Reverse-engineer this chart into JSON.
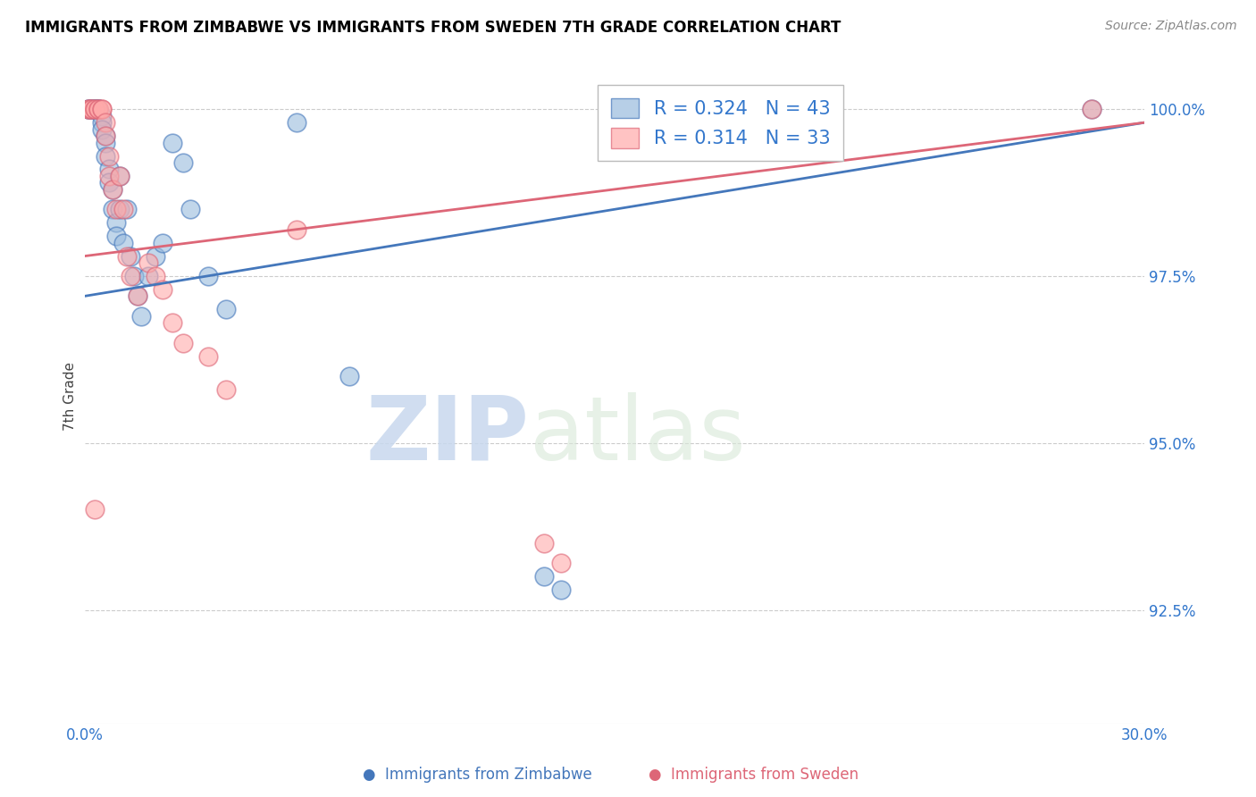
{
  "title": "IMMIGRANTS FROM ZIMBABWE VS IMMIGRANTS FROM SWEDEN 7TH GRADE CORRELATION CHART",
  "source": "Source: ZipAtlas.com",
  "ylabel": "7th Grade",
  "ytick_labels": [
    "100.0%",
    "97.5%",
    "95.0%",
    "92.5%"
  ],
  "ytick_values": [
    1.0,
    0.975,
    0.95,
    0.925
  ],
  "xlim": [
    0.0,
    0.3
  ],
  "ylim": [
    0.908,
    1.006
  ],
  "legend1_label": "Immigrants from Zimbabwe",
  "legend2_label": "Immigrants from Sweden",
  "R_blue": 0.324,
  "N_blue": 43,
  "R_pink": 0.314,
  "N_pink": 33,
  "blue_color": "#99bbdd",
  "pink_color": "#ffaaaa",
  "blue_line_color": "#4477bb",
  "pink_line_color": "#dd6677",
  "watermark_zip": "ZIP",
  "watermark_atlas": "atlas",
  "background_color": "#ffffff",
  "grid_color": "#cccccc",
  "blue_scatter_x": [
    0.001,
    0.001,
    0.002,
    0.002,
    0.003,
    0.003,
    0.003,
    0.004,
    0.004,
    0.004,
    0.005,
    0.005,
    0.005,
    0.006,
    0.006,
    0.006,
    0.007,
    0.007,
    0.008,
    0.008,
    0.009,
    0.009,
    0.01,
    0.01,
    0.011,
    0.012,
    0.013,
    0.014,
    0.015,
    0.016,
    0.018,
    0.02,
    0.022,
    0.025,
    0.028,
    0.03,
    0.035,
    0.04,
    0.06,
    0.075,
    0.13,
    0.135,
    0.285
  ],
  "blue_scatter_y": [
    1.0,
    1.0,
    1.0,
    1.0,
    1.0,
    1.0,
    1.0,
    1.0,
    1.0,
    1.0,
    0.999,
    0.998,
    0.997,
    0.996,
    0.995,
    0.993,
    0.991,
    0.989,
    0.988,
    0.985,
    0.983,
    0.981,
    0.99,
    0.985,
    0.98,
    0.985,
    0.978,
    0.975,
    0.972,
    0.969,
    0.975,
    0.978,
    0.98,
    0.995,
    0.992,
    0.985,
    0.975,
    0.97,
    0.998,
    0.96,
    0.93,
    0.928,
    1.0
  ],
  "pink_scatter_x": [
    0.001,
    0.001,
    0.002,
    0.002,
    0.003,
    0.003,
    0.004,
    0.004,
    0.005,
    0.005,
    0.006,
    0.006,
    0.007,
    0.007,
    0.008,
    0.009,
    0.01,
    0.011,
    0.012,
    0.013,
    0.015,
    0.018,
    0.02,
    0.022,
    0.025,
    0.028,
    0.035,
    0.04,
    0.06,
    0.13,
    0.135,
    0.285,
    0.003
  ],
  "pink_scatter_y": [
    1.0,
    1.0,
    1.0,
    1.0,
    1.0,
    1.0,
    1.0,
    1.0,
    1.0,
    1.0,
    0.998,
    0.996,
    0.993,
    0.99,
    0.988,
    0.985,
    0.99,
    0.985,
    0.978,
    0.975,
    0.972,
    0.977,
    0.975,
    0.973,
    0.968,
    0.965,
    0.963,
    0.958,
    0.982,
    0.935,
    0.932,
    1.0,
    0.94
  ],
  "blue_trendline_x": [
    0.0,
    0.3
  ],
  "blue_trendline_y": [
    0.972,
    0.998
  ],
  "pink_trendline_x": [
    0.0,
    0.3
  ],
  "pink_trendline_y": [
    0.978,
    0.998
  ]
}
